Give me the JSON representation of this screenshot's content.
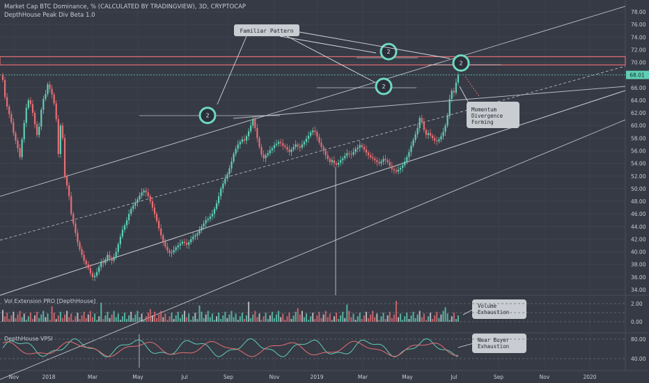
{
  "header": {
    "title": "Market Cap BTC Dominance, % (CALCULATED BY TRADINGVIEW), 3D, CRYPTOCAP",
    "indicator": "DepthHouse Peak Div Beta 1.0"
  },
  "colors": {
    "background": "#363a45",
    "up": "#5fcfb4",
    "down": "#e86e73",
    "circle": "#6fd9bf",
    "resistance": "#e86e73",
    "line": "#d8dbe0",
    "callout_bg": "#c9ccd1",
    "text": "#c8ccd3",
    "price_tag": "#5fcfb4"
  },
  "annotations": {
    "familiar_pattern": "Familiar Pattern",
    "momentum": [
      "Momentum",
      "Divergence",
      "Forming"
    ],
    "volume": [
      "Volume",
      "Exhaustion"
    ],
    "buyer": [
      "Near Buyer",
      "Exhaustion"
    ],
    "circle_label": "2"
  },
  "panels": {
    "volume_title": "Vol Extension PRO [DepthHouse]",
    "vpsi_title": "DepthHouse VPSI"
  },
  "chart_data": {
    "type": "candlestick",
    "price_axis": {
      "ticks": [
        "78.00",
        "76.00",
        "74.00",
        "72.00",
        "70.00",
        "68.00",
        "66.00",
        "64.00",
        "62.00",
        "60.00",
        "58.00",
        "56.00",
        "54.00",
        "52.00",
        "50.00",
        "48.00",
        "46.00",
        "44.00",
        "42.00",
        "40.00",
        "38.00",
        "36.00",
        "34.00"
      ],
      "range": [
        33.5,
        79.0
      ],
      "last_price": "68.01"
    },
    "volume_axis": {
      "ticks": [
        "2.00",
        "0.00"
      ]
    },
    "vpsi_axis": {
      "ticks": [
        "80.00",
        "40.00"
      ]
    },
    "time_axis": {
      "labels": [
        "Nov",
        "2018",
        "Mar",
        "May",
        "Jul",
        "Sep",
        "Nov",
        "2019",
        "Mar",
        "May",
        "Jul",
        "Sep",
        "Nov",
        "2020"
      ]
    },
    "resistance_zone": [
      69.6,
      70.9
    ],
    "series": {
      "close": [
        67.2,
        64.5,
        63.0,
        61.8,
        60.5,
        58.8,
        57.6,
        56.4,
        55.0,
        57.8,
        60.4,
        62.8,
        64.0,
        63.4,
        62.0,
        60.2,
        58.5,
        59.8,
        62.5,
        64.2,
        65.0,
        66.5,
        65.8,
        64.9,
        63.5,
        61.0,
        55.5,
        60.0,
        58.0,
        52.0,
        50.5,
        48.8,
        46.0,
        44.5,
        43.0,
        41.5,
        40.4,
        39.5,
        38.6,
        38.0,
        37.4,
        36.6,
        36.0,
        36.2,
        36.8,
        37.6,
        38.4,
        38.2,
        38.8,
        39.5,
        39.0,
        38.6,
        39.2,
        40.0,
        41.2,
        42.4,
        43.5,
        44.2,
        45.0,
        46.0,
        46.8,
        47.3,
        47.8,
        48.3,
        48.9,
        49.4,
        49.7,
        49.4,
        48.8,
        48.0,
        47.0,
        46.0,
        44.9,
        43.7,
        42.6,
        41.6,
        40.8,
        40.2,
        39.8,
        39.9,
        40.3,
        40.7,
        41.0,
        41.3,
        41.6,
        41.4,
        41.1,
        41.5,
        42.0,
        42.4,
        42.6,
        42.9,
        43.4,
        44.0,
        44.5,
        45.0,
        45.2,
        45.6,
        46.0,
        46.8,
        47.7,
        48.8,
        50.0,
        50.8,
        51.6,
        52.3,
        53.2,
        54.3,
        55.5,
        56.3,
        57.0,
        57.4,
        57.8,
        57.6,
        58.3,
        59.1,
        60.0,
        61.0,
        59.6,
        58.0,
        56.6,
        55.4,
        54.8,
        55.3,
        55.6,
        56.1,
        56.4,
        56.9,
        57.1,
        57.4,
        57.2,
        56.8,
        56.6,
        56.2,
        55.8,
        56.2,
        56.6,
        57.0,
        56.7,
        56.5,
        57.0,
        57.4,
        57.9,
        58.4,
        58.9,
        59.2,
        59.0,
        58.2,
        57.3,
        56.6,
        56.0,
        55.3,
        54.7,
        54.2,
        54.5,
        54.0,
        53.8,
        54.1,
        54.5,
        54.8,
        55.2,
        55.6,
        55.5,
        55.4,
        55.8,
        56.3,
        56.5,
        56.9,
        56.6,
        56.2,
        55.7,
        55.3,
        55.0,
        54.8,
        54.5,
        54.2,
        54.0,
        54.3,
        54.7,
        54.5,
        54.2,
        53.6,
        53.1,
        52.9,
        52.7,
        53.0,
        53.3,
        53.7,
        54.3,
        55.0,
        55.8,
        56.8,
        57.7,
        58.6,
        59.6,
        61.2,
        60.5,
        59.3,
        58.5,
        58.8,
        58.4,
        58.0,
        57.6,
        57.5,
        57.8,
        58.3,
        59.0,
        60.0,
        61.5,
        64.2,
        65.5,
        65.2,
        66.8,
        68.01
      ]
    },
    "peak_markers": [
      {
        "label": "2",
        "price": 61.6
      },
      {
        "label": "2",
        "price": 71.7
      },
      {
        "label": "2",
        "price": 66.2
      },
      {
        "label": "2",
        "price": 69.9
      }
    ]
  }
}
